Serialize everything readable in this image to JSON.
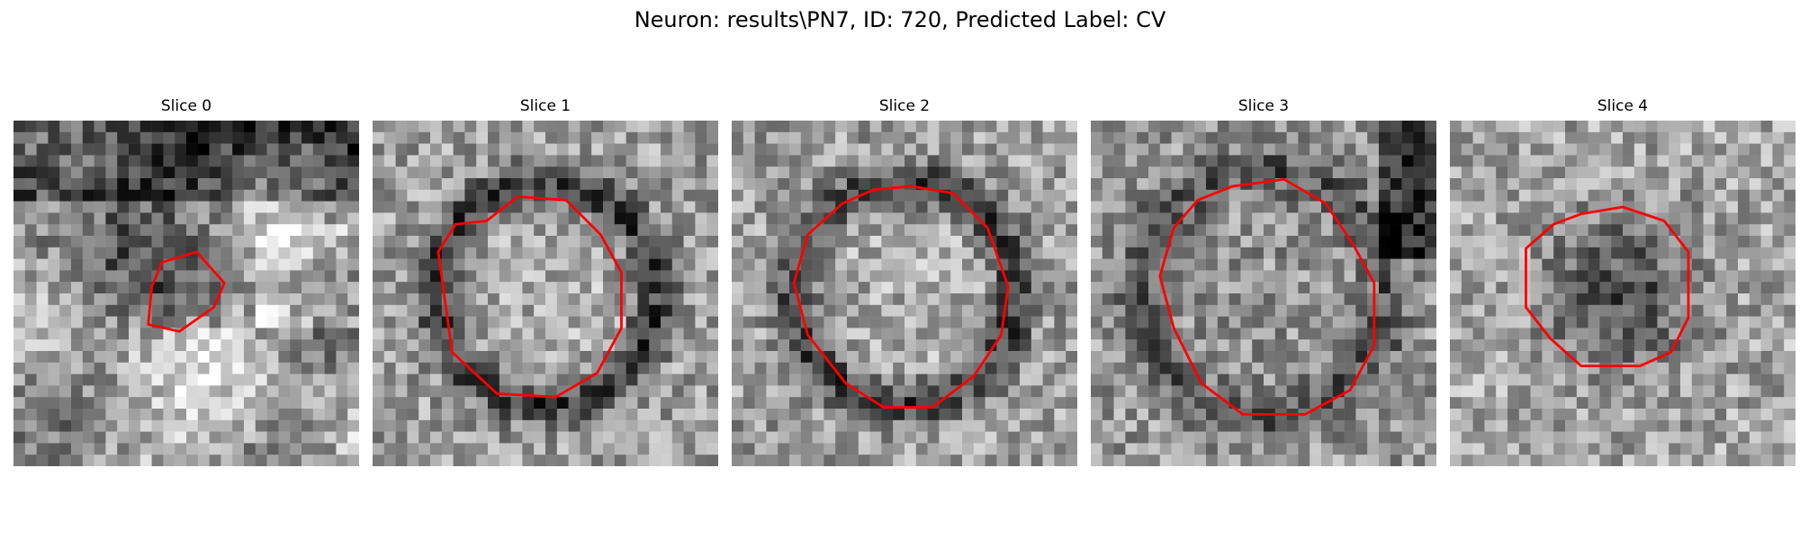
{
  "figure": {
    "title": "Neuron: results\\PN7, ID: 720, Predicted Label: CV",
    "contour_color": "#ff0000",
    "colormap": "gray",
    "slices": [
      {
        "label": "Slice 0",
        "seed": 11,
        "base": "patchy-dark",
        "contour": [
          [
            0.43,
            0.41
          ],
          [
            0.53,
            0.38
          ],
          [
            0.61,
            0.47
          ],
          [
            0.58,
            0.54
          ],
          [
            0.48,
            0.61
          ],
          [
            0.39,
            0.59
          ],
          [
            0.4,
            0.48
          ]
        ]
      },
      {
        "label": "Slice 1",
        "seed": 23,
        "base": "ring",
        "contour": [
          [
            0.33,
            0.29
          ],
          [
            0.42,
            0.22
          ],
          [
            0.56,
            0.23
          ],
          [
            0.66,
            0.33
          ],
          [
            0.72,
            0.44
          ],
          [
            0.72,
            0.6
          ],
          [
            0.65,
            0.73
          ],
          [
            0.53,
            0.8
          ],
          [
            0.36,
            0.79
          ],
          [
            0.23,
            0.67
          ],
          [
            0.19,
            0.38
          ],
          [
            0.24,
            0.3
          ]
        ]
      },
      {
        "label": "Slice 2",
        "seed": 37,
        "base": "ring",
        "contour": [
          [
            0.41,
            0.2
          ],
          [
            0.52,
            0.19
          ],
          [
            0.64,
            0.21
          ],
          [
            0.74,
            0.31
          ],
          [
            0.8,
            0.48
          ],
          [
            0.78,
            0.62
          ],
          [
            0.7,
            0.74
          ],
          [
            0.58,
            0.83
          ],
          [
            0.44,
            0.83
          ],
          [
            0.33,
            0.76
          ],
          [
            0.22,
            0.62
          ],
          [
            0.18,
            0.47
          ],
          [
            0.22,
            0.33
          ],
          [
            0.32,
            0.24
          ]
        ]
      },
      {
        "label": "Slice 3",
        "seed": 53,
        "base": "soft-blob",
        "contour": [
          [
            0.41,
            0.19
          ],
          [
            0.56,
            0.17
          ],
          [
            0.68,
            0.24
          ],
          [
            0.76,
            0.36
          ],
          [
            0.82,
            0.47
          ],
          [
            0.82,
            0.65
          ],
          [
            0.75,
            0.78
          ],
          [
            0.62,
            0.85
          ],
          [
            0.44,
            0.85
          ],
          [
            0.32,
            0.76
          ],
          [
            0.24,
            0.6
          ],
          [
            0.2,
            0.45
          ],
          [
            0.24,
            0.31
          ],
          [
            0.31,
            0.23
          ]
        ]
      },
      {
        "label": "Slice 4",
        "seed": 71,
        "base": "dark-center",
        "contour": [
          [
            0.38,
            0.27
          ],
          [
            0.5,
            0.25
          ],
          [
            0.62,
            0.29
          ],
          [
            0.69,
            0.38
          ],
          [
            0.69,
            0.57
          ],
          [
            0.64,
            0.67
          ],
          [
            0.55,
            0.71
          ],
          [
            0.38,
            0.71
          ],
          [
            0.29,
            0.63
          ],
          [
            0.22,
            0.54
          ],
          [
            0.22,
            0.37
          ],
          [
            0.3,
            0.3
          ]
        ]
      }
    ]
  }
}
